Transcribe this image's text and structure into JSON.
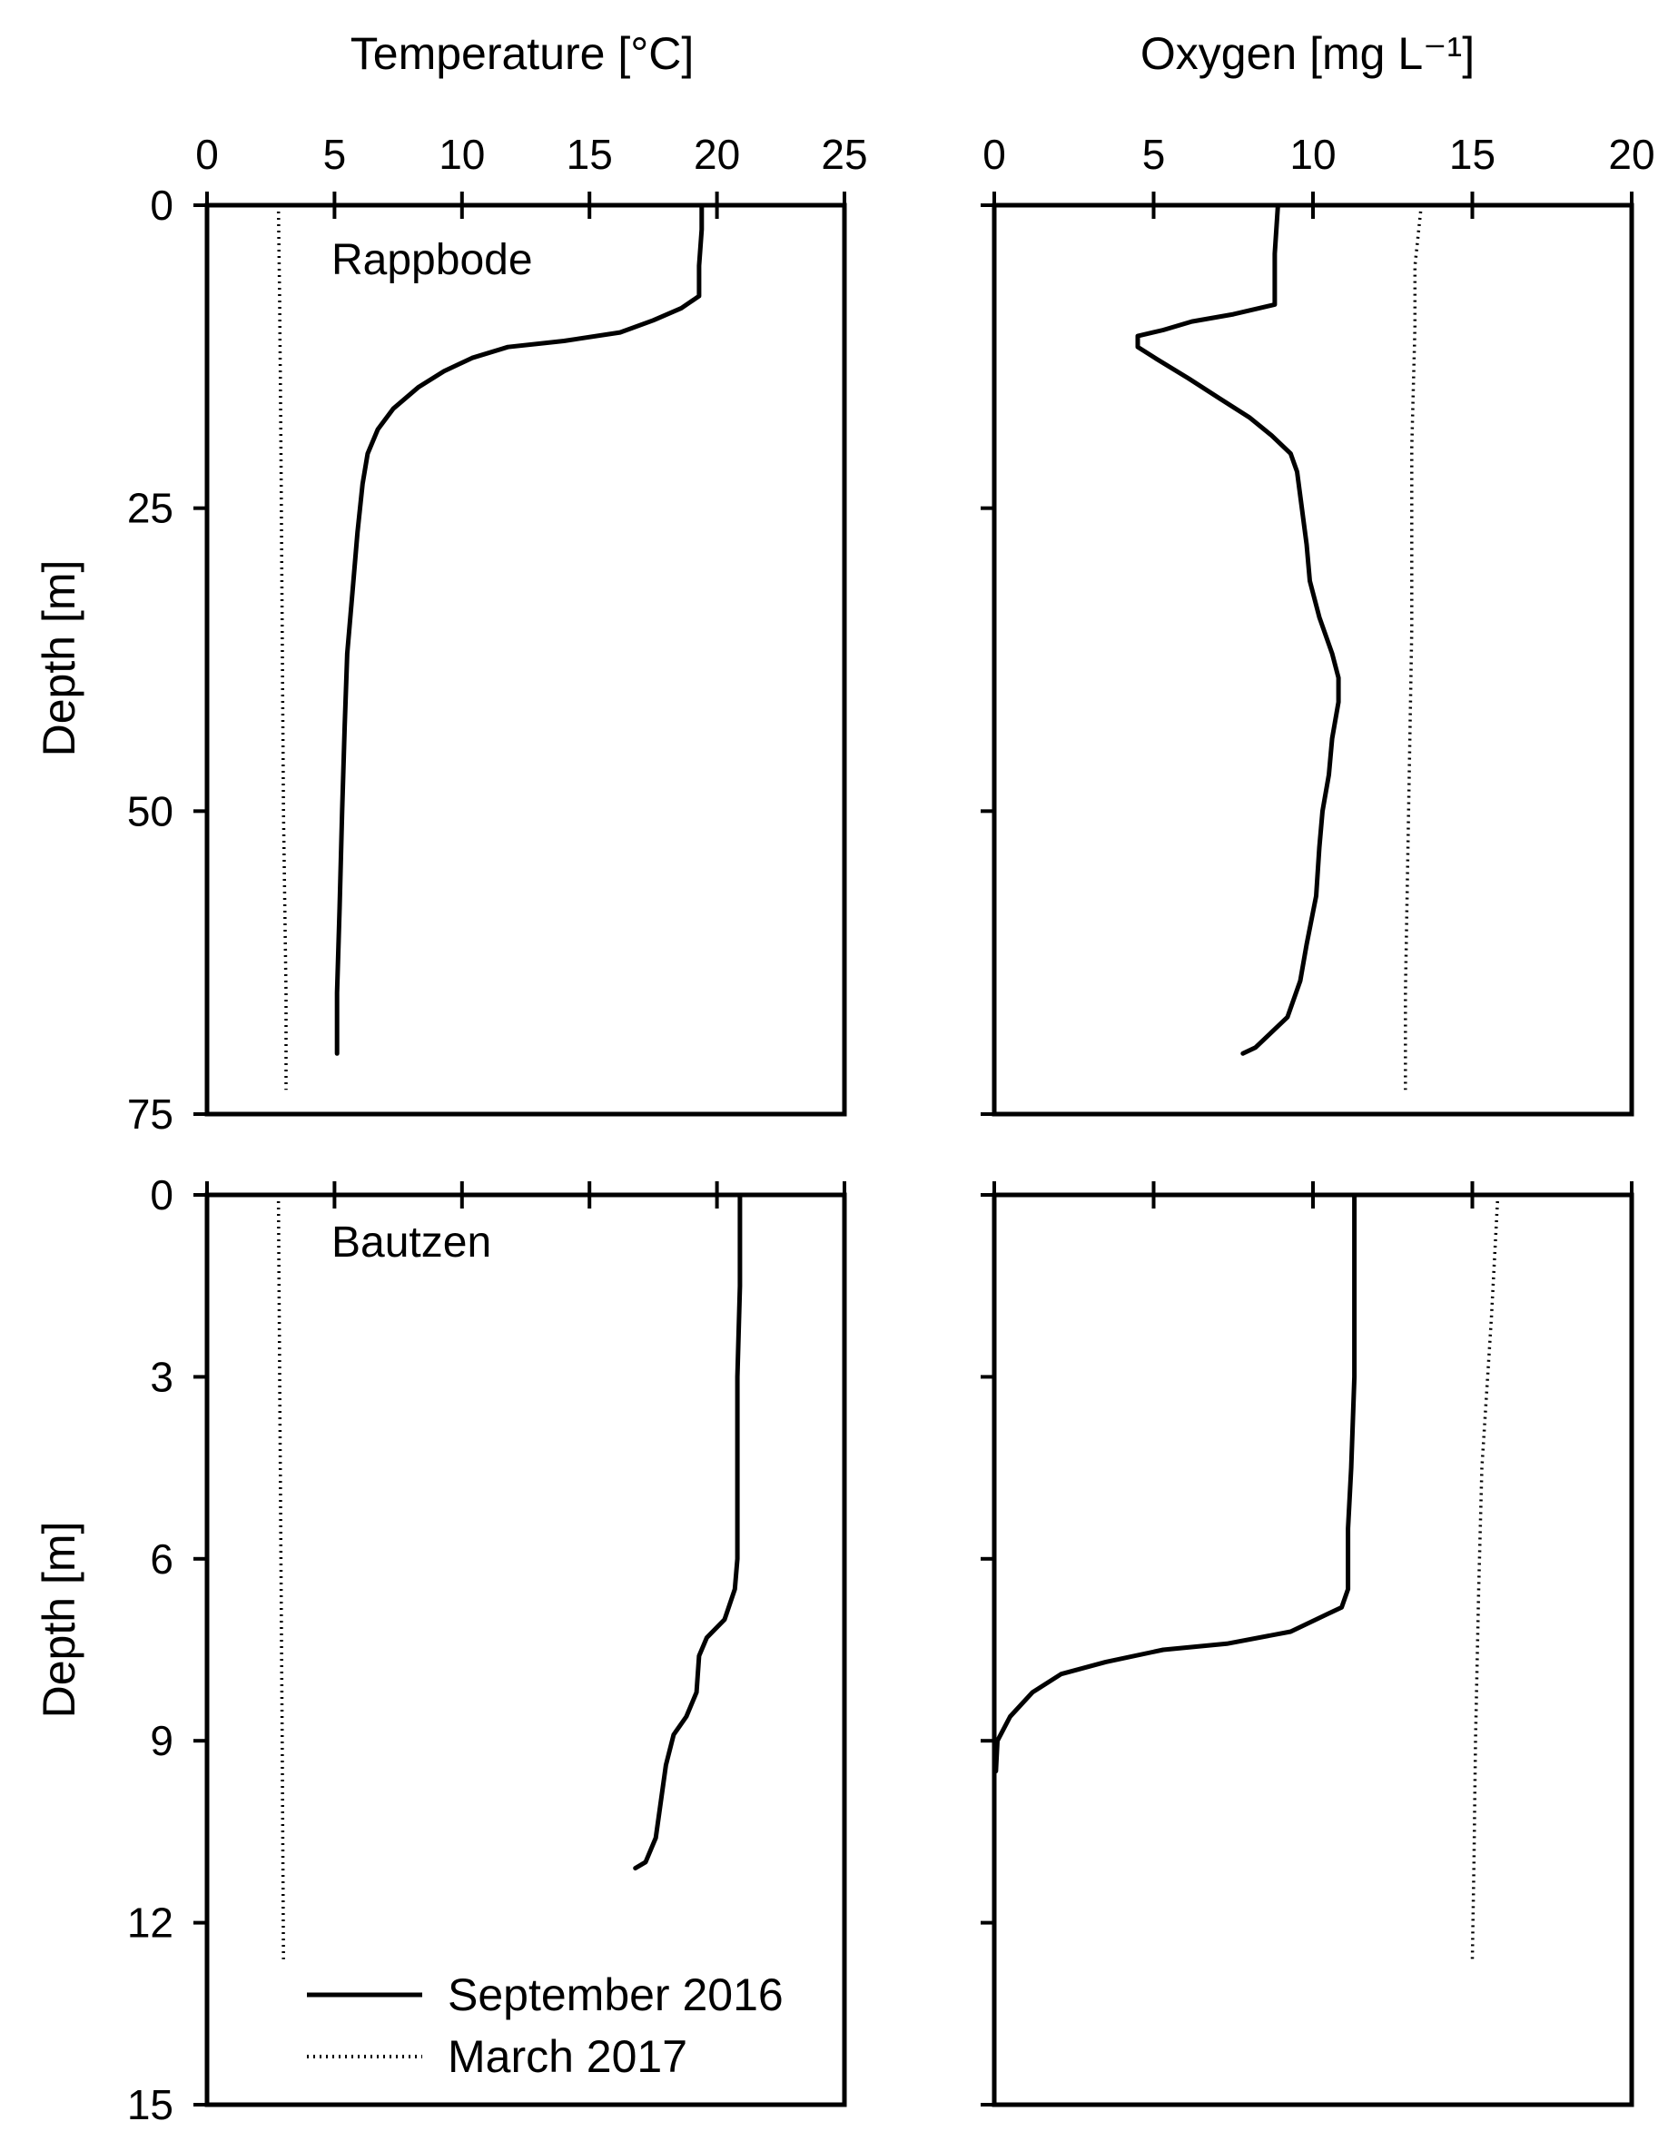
{
  "chart_data": [
    {
      "type": "line",
      "panel": "top-left",
      "title": "Temperature [°C]",
      "annotation": "Rappbode",
      "ylabel": "Depth [m]",
      "xlim": [
        0,
        25
      ],
      "ylim": [
        0,
        75
      ],
      "y_inverted": true,
      "xticks": [
        "0",
        "5",
        "10",
        "15",
        "20",
        "25"
      ],
      "yticks": [
        "0",
        "25",
        "50",
        "75"
      ],
      "series": [
        {
          "name": "September 2016",
          "style": "solid",
          "points": [
            [
              19.4,
              0
            ],
            [
              19.4,
              2
            ],
            [
              19.3,
              5
            ],
            [
              19.3,
              7.5
            ],
            [
              18.6,
              8.5
            ],
            [
              17.5,
              9.5
            ],
            [
              16.2,
              10.5
            ],
            [
              14,
              11.2
            ],
            [
              11.8,
              11.7
            ],
            [
              10.4,
              12.6
            ],
            [
              9.3,
              13.7
            ],
            [
              8.3,
              15
            ],
            [
              7.3,
              16.8
            ],
            [
              6.7,
              18.5
            ],
            [
              6.3,
              20.5
            ],
            [
              6.1,
              23
            ],
            [
              5.9,
              27
            ],
            [
              5.7,
              32
            ],
            [
              5.5,
              37
            ],
            [
              5.4,
              43
            ],
            [
              5.3,
              50
            ],
            [
              5.2,
              58
            ],
            [
              5.1,
              65
            ],
            [
              5.1,
              70
            ]
          ]
        },
        {
          "name": "March 2017",
          "style": "dotted",
          "points": [
            [
              2.8,
              0
            ],
            [
              2.85,
              8
            ],
            [
              2.9,
              20
            ],
            [
              2.95,
              35
            ],
            [
              3.0,
              50
            ],
            [
              3.1,
              65
            ],
            [
              3.1,
              73
            ]
          ]
        }
      ]
    },
    {
      "type": "line",
      "panel": "top-right",
      "title": "Oxygen [mg L⁻¹]",
      "xlim": [
        0,
        20
      ],
      "ylim": [
        0,
        75
      ],
      "y_inverted": true,
      "xticks": [
        "0",
        "5",
        "10",
        "15",
        "20"
      ],
      "yticks": [
        "0",
        "25",
        "50",
        "75"
      ],
      "series": [
        {
          "name": "September 2016",
          "style": "solid",
          "points": [
            [
              8.9,
              0
            ],
            [
              8.8,
              4
            ],
            [
              8.8,
              8.2
            ],
            [
              7.5,
              9
            ],
            [
              6.2,
              9.6
            ],
            [
              5.3,
              10.3
            ],
            [
              4.5,
              10.8
            ],
            [
              4.5,
              11.7
            ],
            [
              5.1,
              12.7
            ],
            [
              6.1,
              14.3
            ],
            [
              7.1,
              16
            ],
            [
              8,
              17.5
            ],
            [
              8.7,
              19
            ],
            [
              9.3,
              20.5
            ],
            [
              9.5,
              22
            ],
            [
              9.6,
              24
            ],
            [
              9.8,
              28
            ],
            [
              9.9,
              31
            ],
            [
              10.2,
              34
            ],
            [
              10.6,
              37
            ],
            [
              10.8,
              39
            ],
            [
              10.8,
              41
            ],
            [
              10.6,
              44
            ],
            [
              10.5,
              47
            ],
            [
              10.3,
              50
            ],
            [
              10.2,
              53
            ],
            [
              10.1,
              57
            ],
            [
              9.8,
              61
            ],
            [
              9.6,
              64
            ],
            [
              9.2,
              67
            ],
            [
              8.6,
              68.5
            ],
            [
              8.2,
              69.5
            ],
            [
              7.8,
              70
            ]
          ]
        },
        {
          "name": "March 2017",
          "style": "dotted",
          "points": [
            [
              13.4,
              0
            ],
            [
              13.2,
              5
            ],
            [
              13.2,
              10
            ],
            [
              13.1,
              20
            ],
            [
              13.1,
              35
            ],
            [
              13.0,
              50
            ],
            [
              12.9,
              65
            ],
            [
              12.9,
              73
            ]
          ]
        }
      ]
    },
    {
      "type": "line",
      "panel": "bottom-left",
      "annotation": "Bautzen",
      "ylabel": "Depth [m]",
      "xlim": [
        0,
        25
      ],
      "ylim": [
        0,
        15
      ],
      "y_inverted": true,
      "xticks": [
        "5",
        "10",
        "15",
        "20"
      ],
      "yticks": [
        "0",
        "3",
        "6",
        "9",
        "12",
        "15"
      ],
      "series": [
        {
          "name": "September 2016",
          "style": "solid",
          "points": [
            [
              20.9,
              0
            ],
            [
              20.9,
              1.5
            ],
            [
              20.8,
              3
            ],
            [
              20.8,
              4.5
            ],
            [
              20.8,
              6
            ],
            [
              20.7,
              6.5
            ],
            [
              20.3,
              7
            ],
            [
              19.6,
              7.3
            ],
            [
              19.3,
              7.6
            ],
            [
              19.2,
              8.2
            ],
            [
              18.8,
              8.6
            ],
            [
              18.3,
              8.9
            ],
            [
              18,
              9.4
            ],
            [
              17.8,
              10
            ],
            [
              17.6,
              10.6
            ],
            [
              17.2,
              11
            ],
            [
              16.8,
              11.1
            ]
          ]
        },
        {
          "name": "March 2017",
          "style": "dotted",
          "points": [
            [
              2.8,
              0
            ],
            [
              2.85,
              3
            ],
            [
              2.9,
              6
            ],
            [
              2.95,
              9
            ],
            [
              3.0,
              12.6
            ]
          ]
        }
      ]
    },
    {
      "type": "line",
      "panel": "bottom-right",
      "xlim": [
        0,
        20
      ],
      "ylim": [
        0,
        15
      ],
      "y_inverted": true,
      "xticks": [
        "5",
        "10",
        "15"
      ],
      "yticks": [
        "3",
        "6",
        "9",
        "12"
      ],
      "series": [
        {
          "name": "September 2016",
          "style": "solid",
          "points": [
            [
              11.3,
              0
            ],
            [
              11.3,
              1.5
            ],
            [
              11.3,
              3
            ],
            [
              11.2,
              4.5
            ],
            [
              11.1,
              5.5
            ],
            [
              11.1,
              6.5
            ],
            [
              10.9,
              6.8
            ],
            [
              10.5,
              6.9
            ],
            [
              9.3,
              7.2
            ],
            [
              7.3,
              7.4
            ],
            [
              5.3,
              7.5
            ],
            [
              3.5,
              7.7
            ],
            [
              2.1,
              7.9
            ],
            [
              1.2,
              8.2
            ],
            [
              0.5,
              8.6
            ],
            [
              0.1,
              9.0
            ],
            [
              0.05,
              9.5
            ]
          ]
        },
        {
          "name": "March 2017",
          "style": "dotted",
          "points": [
            [
              15.8,
              0
            ],
            [
              15.6,
              2
            ],
            [
              15.3,
              4.5
            ],
            [
              15.2,
              6.5
            ],
            [
              15.1,
              9
            ],
            [
              15.05,
              11
            ],
            [
              15.0,
              12.6
            ]
          ]
        }
      ]
    }
  ],
  "legend": {
    "placement": "bottom-left",
    "entries": [
      {
        "label": "September 2016",
        "style": "solid"
      },
      {
        "label": "March 2017",
        "style": "dotted"
      }
    ]
  }
}
